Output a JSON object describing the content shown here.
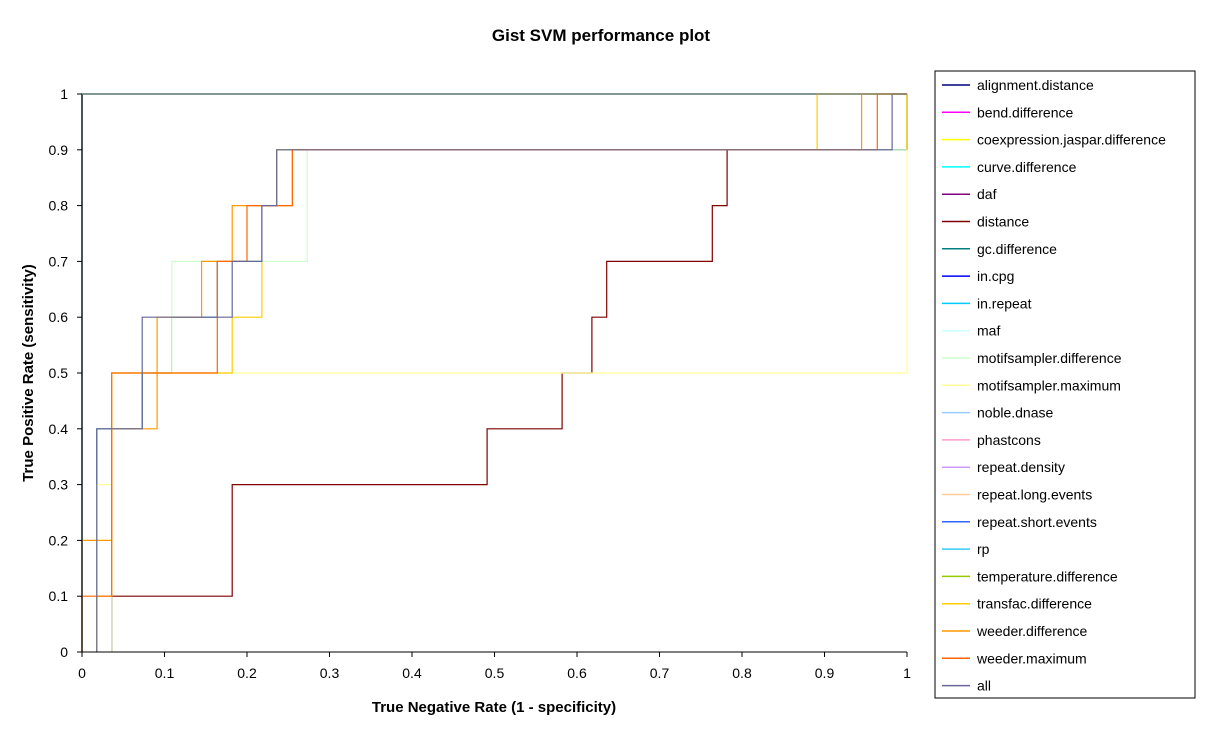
{
  "chart_data": {
    "type": "line",
    "title": "Gist SVM performance plot",
    "xlabel": "True Negative Rate (1 - specificity)",
    "ylabel": "True Positive Rate (sensitivity)",
    "xlim": [
      0,
      1
    ],
    "ylim": [
      0,
      1
    ],
    "x_ticks": [
      "0",
      "0.1",
      "0.2",
      "0.3",
      "0.4",
      "0.5",
      "0.6",
      "0.7",
      "0.8",
      "0.9",
      "1"
    ],
    "y_ticks": [
      "0",
      "0.1",
      "0.2",
      "0.3",
      "0.4",
      "0.5",
      "0.6",
      "0.7",
      "0.8",
      "0.9",
      "1"
    ],
    "grid": "horizontal-top-only",
    "legend_position": "right",
    "series": [
      {
        "name": "alignment.distance",
        "color": "#000080",
        "x": [
          0,
          0,
          1,
          1
        ],
        "y": [
          0,
          1,
          1,
          1
        ]
      },
      {
        "name": "bend.difference",
        "color": "#ff00ff",
        "x": [
          0,
          0,
          1
        ],
        "y": [
          0,
          1,
          1
        ]
      },
      {
        "name": "coexpression.jaspar.difference",
        "color": "#ffff00",
        "x": [
          0,
          0,
          1
        ],
        "y": [
          0,
          1,
          1
        ]
      },
      {
        "name": "curve.difference",
        "color": "#00ffff",
        "x": [
          0,
          0,
          1
        ],
        "y": [
          0,
          1,
          1
        ]
      },
      {
        "name": "daf",
        "color": "#800080",
        "x": [
          0,
          0,
          1
        ],
        "y": [
          0,
          1,
          1
        ]
      },
      {
        "name": "distance",
        "color": "#800000",
        "x": [
          0.036,
          0.036,
          0.182,
          0.182,
          0.491,
          0.491,
          0.582,
          0.582,
          0.618,
          0.618,
          0.636,
          0.636,
          0.764,
          0.764,
          0.782,
          0.782,
          1,
          1
        ],
        "y": [
          0,
          0.1,
          0.1,
          0.3,
          0.3,
          0.4,
          0.4,
          0.5,
          0.5,
          0.6,
          0.6,
          0.7,
          0.7,
          0.8,
          0.8,
          0.9,
          0.9,
          1
        ]
      },
      {
        "name": "gc.difference",
        "color": "#008080",
        "x": [
          0.018,
          0.018,
          0.073,
          0.073,
          0.109,
          0.109,
          0.164,
          0.164,
          0.218,
          0.218,
          0.236,
          0.236,
          1,
          1
        ],
        "y": [
          0,
          0.4,
          0.4,
          0.5,
          0.5,
          0.6,
          0.6,
          0.7,
          0.7,
          0.8,
          0.8,
          0.9,
          0.9,
          1
        ]
      },
      {
        "name": "in.cpg",
        "color": "#0000ff",
        "x": [
          0,
          0,
          1
        ],
        "y": [
          0,
          1,
          1
        ]
      },
      {
        "name": "in.repeat",
        "color": "#00ccff",
        "x": [
          0,
          0,
          1
        ],
        "y": [
          0,
          1,
          1
        ]
      },
      {
        "name": "maf",
        "color": "#ccffff",
        "x": [
          0,
          0,
          1
        ],
        "y": [
          0,
          1,
          1
        ]
      },
      {
        "name": "motifsampler.difference",
        "color": "#ccffcc",
        "x": [
          0.036,
          0.036,
          0.109,
          0.109,
          0.273,
          0.273,
          1,
          1
        ],
        "y": [
          0,
          0.5,
          0.5,
          0.7,
          0.7,
          0.9,
          0.9,
          1
        ]
      },
      {
        "name": "motifsampler.maximum",
        "color": "#ffff99",
        "x": [
          0.018,
          0.018,
          0.036,
          0.036,
          1,
          1
        ],
        "y": [
          0,
          0.3,
          0.3,
          0.5,
          0.5,
          1
        ]
      },
      {
        "name": "noble.dnase",
        "color": "#99ccff",
        "x": [
          0,
          0,
          1
        ],
        "y": [
          0,
          1,
          1
        ]
      },
      {
        "name": "phastcons",
        "color": "#ff99cc",
        "x": [
          0,
          0,
          1
        ],
        "y": [
          0,
          1,
          1
        ]
      },
      {
        "name": "repeat.density",
        "color": "#cc99ff",
        "x": [
          0,
          0,
          1
        ],
        "y": [
          0,
          1,
          1
        ]
      },
      {
        "name": "repeat.long.events",
        "color": "#ffcc99",
        "x": [
          0,
          0,
          1
        ],
        "y": [
          0,
          1,
          1
        ]
      },
      {
        "name": "repeat.short.events",
        "color": "#3366ff",
        "x": [
          0,
          0,
          1
        ],
        "y": [
          0,
          1,
          1
        ]
      },
      {
        "name": "rp",
        "color": "#33ccff",
        "x": [
          0,
          0,
          1
        ],
        "y": [
          0,
          1,
          1
        ]
      },
      {
        "name": "temperature.difference",
        "color": "#99cc00",
        "x": [
          0,
          0,
          1
        ],
        "y": [
          0,
          1,
          1
        ]
      },
      {
        "name": "transfac.difference",
        "color": "#ffcc00",
        "x": [
          0.018,
          0.018,
          0.036,
          0.036,
          0.182,
          0.182,
          0.218,
          0.218,
          0.236,
          0.236,
          0.891,
          0.891,
          1,
          1
        ],
        "y": [
          0,
          0.1,
          0.1,
          0.5,
          0.5,
          0.6,
          0.6,
          0.8,
          0.8,
          0.9,
          0.9,
          1,
          1,
          0.9
        ]
      },
      {
        "name": "weeder.difference",
        "color": "#ff9900",
        "x": [
          0,
          0,
          0.036,
          0.036,
          0.091,
          0.091,
          0.145,
          0.145,
          0.182,
          0.182,
          0.255,
          0.255,
          0.327,
          0.327,
          0.945,
          0.945,
          1,
          1
        ],
        "y": [
          0,
          0.2,
          0.2,
          0.4,
          0.4,
          0.6,
          0.6,
          0.7,
          0.7,
          0.8,
          0.8,
          0.9,
          0.9,
          0.9,
          0.9,
          1,
          1,
          1
        ]
      },
      {
        "name": "weeder.maximum",
        "color": "#ff6600",
        "x": [
          0,
          0,
          0.036,
          0.036,
          0.164,
          0.164,
          0.2,
          0.2,
          0.255,
          0.255,
          0.964,
          0.964,
          1,
          1
        ],
        "y": [
          0,
          0.1,
          0.1,
          0.5,
          0.5,
          0.7,
          0.7,
          0.8,
          0.8,
          0.9,
          0.9,
          1,
          1,
          1
        ]
      },
      {
        "name": "all",
        "color": "#666699",
        "x": [
          0.018,
          0.018,
          0.073,
          0.073,
          0.127,
          0.127,
          0.182,
          0.182,
          0.218,
          0.218,
          0.236,
          0.236,
          0.982,
          0.982,
          1
        ],
        "y": [
          0,
          0.4,
          0.4,
          0.6,
          0.6,
          0.6,
          0.6,
          0.7,
          0.7,
          0.8,
          0.8,
          0.9,
          0.9,
          1,
          1
        ]
      }
    ]
  }
}
